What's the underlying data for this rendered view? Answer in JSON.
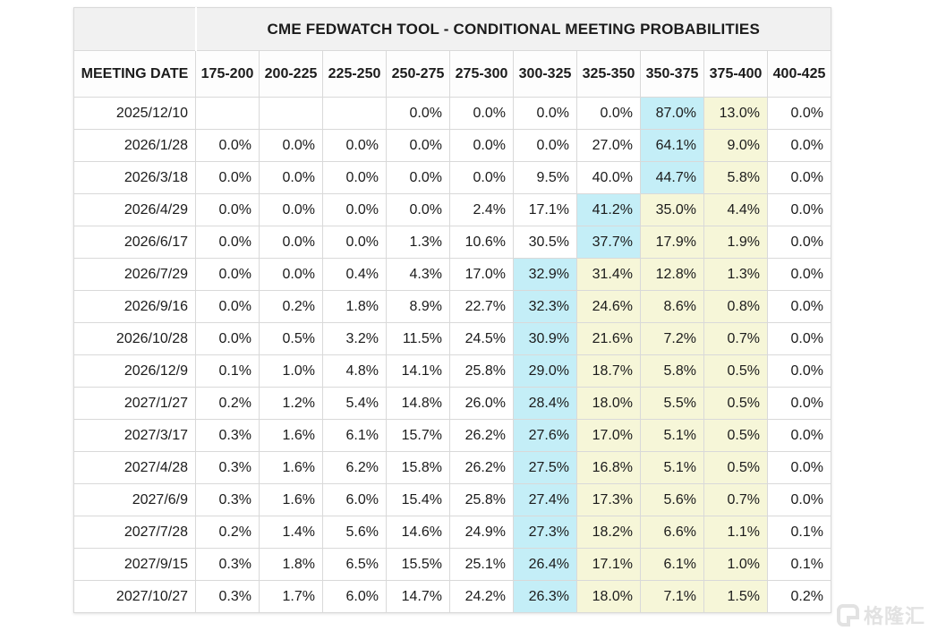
{
  "table": {
    "title": "CME FEDWATCH TOOL - CONDITIONAL MEETING PROBABILITIES",
    "date_column_header": "MEETING DATE",
    "rate_columns": [
      "175-200",
      "200-225",
      "225-250",
      "250-275",
      "275-300",
      "300-325",
      "325-350",
      "350-375",
      "375-400",
      "400-425"
    ],
    "rows": [
      {
        "date": "2025/12/10",
        "values": [
          "",
          "",
          "",
          "0.0%",
          "0.0%",
          "0.0%",
          "0.0%",
          "87.0%",
          "13.0%",
          "0.0%"
        ],
        "cyan": 7,
        "yellow": [
          8
        ]
      },
      {
        "date": "2026/1/28",
        "values": [
          "0.0%",
          "0.0%",
          "0.0%",
          "0.0%",
          "0.0%",
          "0.0%",
          "27.0%",
          "64.1%",
          "9.0%",
          "0.0%"
        ],
        "cyan": 7,
        "yellow": [
          8
        ]
      },
      {
        "date": "2026/3/18",
        "values": [
          "0.0%",
          "0.0%",
          "0.0%",
          "0.0%",
          "0.0%",
          "9.5%",
          "40.0%",
          "44.7%",
          "5.8%",
          "0.0%"
        ],
        "cyan": 7,
        "yellow": [
          8
        ]
      },
      {
        "date": "2026/4/29",
        "values": [
          "0.0%",
          "0.0%",
          "0.0%",
          "0.0%",
          "2.4%",
          "17.1%",
          "41.2%",
          "35.0%",
          "4.4%",
          "0.0%"
        ],
        "cyan": 6,
        "yellow": [
          7,
          8
        ]
      },
      {
        "date": "2026/6/17",
        "values": [
          "0.0%",
          "0.0%",
          "0.0%",
          "1.3%",
          "10.6%",
          "30.5%",
          "37.7%",
          "17.9%",
          "1.9%",
          "0.0%"
        ],
        "cyan": 6,
        "yellow": [
          7,
          8
        ]
      },
      {
        "date": "2026/7/29",
        "values": [
          "0.0%",
          "0.0%",
          "0.4%",
          "4.3%",
          "17.0%",
          "32.9%",
          "31.4%",
          "12.8%",
          "1.3%",
          "0.0%"
        ],
        "cyan": 5,
        "yellow": [
          6,
          7,
          8
        ]
      },
      {
        "date": "2026/9/16",
        "values": [
          "0.0%",
          "0.2%",
          "1.8%",
          "8.9%",
          "22.7%",
          "32.3%",
          "24.6%",
          "8.6%",
          "0.8%",
          "0.0%"
        ],
        "cyan": 5,
        "yellow": [
          6,
          7,
          8
        ]
      },
      {
        "date": "2026/10/28",
        "values": [
          "0.0%",
          "0.5%",
          "3.2%",
          "11.5%",
          "24.5%",
          "30.9%",
          "21.6%",
          "7.2%",
          "0.7%",
          "0.0%"
        ],
        "cyan": 5,
        "yellow": [
          6,
          7,
          8
        ]
      },
      {
        "date": "2026/12/9",
        "values": [
          "0.1%",
          "1.0%",
          "4.8%",
          "14.1%",
          "25.8%",
          "29.0%",
          "18.7%",
          "5.8%",
          "0.5%",
          "0.0%"
        ],
        "cyan": 5,
        "yellow": [
          6,
          7,
          8
        ]
      },
      {
        "date": "2027/1/27",
        "values": [
          "0.2%",
          "1.2%",
          "5.4%",
          "14.8%",
          "26.0%",
          "28.4%",
          "18.0%",
          "5.5%",
          "0.5%",
          "0.0%"
        ],
        "cyan": 5,
        "yellow": [
          6,
          7,
          8
        ]
      },
      {
        "date": "2027/3/17",
        "values": [
          "0.3%",
          "1.6%",
          "6.1%",
          "15.7%",
          "26.2%",
          "27.6%",
          "17.0%",
          "5.1%",
          "0.5%",
          "0.0%"
        ],
        "cyan": 5,
        "yellow": [
          6,
          7,
          8
        ]
      },
      {
        "date": "2027/4/28",
        "values": [
          "0.3%",
          "1.6%",
          "6.2%",
          "15.8%",
          "26.2%",
          "27.5%",
          "16.8%",
          "5.1%",
          "0.5%",
          "0.0%"
        ],
        "cyan": 5,
        "yellow": [
          6,
          7,
          8
        ]
      },
      {
        "date": "2027/6/9",
        "values": [
          "0.3%",
          "1.6%",
          "6.0%",
          "15.4%",
          "25.8%",
          "27.4%",
          "17.3%",
          "5.6%",
          "0.7%",
          "0.0%"
        ],
        "cyan": 5,
        "yellow": [
          6,
          7,
          8
        ]
      },
      {
        "date": "2027/7/28",
        "values": [
          "0.2%",
          "1.4%",
          "5.6%",
          "14.6%",
          "24.9%",
          "27.3%",
          "18.2%",
          "6.6%",
          "1.1%",
          "0.1%"
        ],
        "cyan": 5,
        "yellow": [
          6,
          7,
          8
        ]
      },
      {
        "date": "2027/9/15",
        "values": [
          "0.3%",
          "1.8%",
          "6.5%",
          "15.5%",
          "25.1%",
          "26.4%",
          "17.1%",
          "6.1%",
          "1.0%",
          "0.1%"
        ],
        "cyan": 5,
        "yellow": [
          6,
          7,
          8
        ]
      },
      {
        "date": "2027/10/27",
        "values": [
          "0.3%",
          "1.7%",
          "6.0%",
          "14.7%",
          "24.2%",
          "26.3%",
          "18.0%",
          "7.1%",
          "1.5%",
          "0.2%"
        ],
        "cyan": 5,
        "yellow": [
          6,
          7,
          8
        ]
      }
    ]
  },
  "colors": {
    "highlight_cyan": "#c4eef7",
    "highlight_yellow": "#f6f6d8",
    "title_band_gray": "#f1f1f1",
    "border_gray": "#d9d9d9"
  },
  "watermark": {
    "text": "格隆汇"
  }
}
